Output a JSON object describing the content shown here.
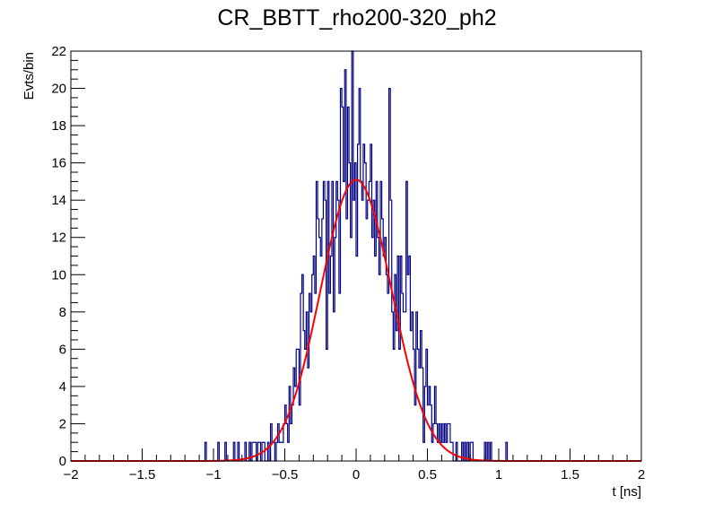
{
  "chart_data": {
    "type": "histogram",
    "title": "CR_BBTT_rho200-320_ph2",
    "xlabel": "t [ns]",
    "ylabel": "Evts/bin",
    "xlim": [
      -2,
      2
    ],
    "ylim": [
      0,
      22
    ],
    "x_ticks": [
      -2,
      -1.5,
      -1,
      -0.5,
      0,
      0.5,
      1,
      1.5,
      2
    ],
    "x_tick_labels": [
      "−2",
      "−1.5",
      "−1",
      "−0.5",
      "0",
      "0.5",
      "1",
      "1.5",
      "2"
    ],
    "y_ticks": [
      0,
      2,
      4,
      6,
      8,
      10,
      12,
      14,
      16,
      18,
      20,
      22
    ],
    "y_tick_labels": [
      "0",
      "2",
      "4",
      "6",
      "8",
      "10",
      "12",
      "14",
      "16",
      "18",
      "20",
      "22"
    ],
    "bin_width": 0.01,
    "histogram": {
      "color": "#000080",
      "bins": [
        [
          -1.06,
          1
        ],
        [
          -0.97,
          1
        ],
        [
          -0.92,
          1
        ],
        [
          -0.86,
          1
        ],
        [
          -0.83,
          1
        ],
        [
          -0.78,
          1
        ],
        [
          -0.75,
          1
        ],
        [
          -0.73,
          1
        ],
        [
          -0.72,
          1
        ],
        [
          -0.71,
          1
        ],
        [
          -0.69,
          1
        ],
        [
          -0.68,
          1
        ],
        [
          -0.66,
          1
        ],
        [
          -0.65,
          1
        ],
        [
          -0.62,
          1
        ],
        [
          -0.6,
          2
        ],
        [
          -0.59,
          1
        ],
        [
          -0.58,
          1
        ],
        [
          -0.56,
          1
        ],
        [
          -0.55,
          2
        ],
        [
          -0.54,
          1
        ],
        [
          -0.53,
          1
        ],
        [
          -0.52,
          1
        ],
        [
          -0.51,
          2
        ],
        [
          -0.5,
          3
        ],
        [
          -0.49,
          2
        ],
        [
          -0.48,
          1
        ],
        [
          -0.47,
          4
        ],
        [
          -0.46,
          2
        ],
        [
          -0.45,
          3
        ],
        [
          -0.44,
          5
        ],
        [
          -0.43,
          4
        ],
        [
          -0.42,
          6
        ],
        [
          -0.41,
          6
        ],
        [
          -0.4,
          3
        ],
        [
          -0.39,
          9
        ],
        [
          -0.38,
          10
        ],
        [
          -0.37,
          7
        ],
        [
          -0.36,
          6
        ],
        [
          -0.35,
          8
        ],
        [
          -0.34,
          5
        ],
        [
          -0.33,
          9
        ],
        [
          -0.32,
          8
        ],
        [
          -0.31,
          10
        ],
        [
          -0.3,
          11
        ],
        [
          -0.29,
          9
        ],
        [
          -0.28,
          15
        ],
        [
          -0.27,
          13
        ],
        [
          -0.26,
          12
        ],
        [
          -0.25,
          11
        ],
        [
          -0.24,
          13
        ],
        [
          -0.23,
          15
        ],
        [
          -0.22,
          14
        ],
        [
          -0.21,
          6
        ],
        [
          -0.2,
          15
        ],
        [
          -0.19,
          9
        ],
        [
          -0.18,
          11
        ],
        [
          -0.17,
          15
        ],
        [
          -0.16,
          8
        ],
        [
          -0.15,
          12
        ],
        [
          -0.14,
          15
        ],
        [
          -0.13,
          14
        ],
        [
          -0.12,
          9
        ],
        [
          -0.11,
          20
        ],
        [
          -0.1,
          19
        ],
        [
          -0.09,
          15
        ],
        [
          -0.08,
          21
        ],
        [
          -0.07,
          13
        ],
        [
          -0.06,
          19
        ],
        [
          -0.05,
          16
        ],
        [
          -0.04,
          12
        ],
        [
          -0.03,
          22
        ],
        [
          -0.02,
          14
        ],
        [
          -0.01,
          16
        ],
        [
          0.0,
          11
        ],
        [
          0.01,
          17
        ],
        [
          0.02,
          20
        ],
        [
          0.03,
          15
        ],
        [
          0.04,
          14
        ],
        [
          0.05,
          17
        ],
        [
          0.06,
          16
        ],
        [
          0.07,
          13
        ],
        [
          0.08,
          14
        ],
        [
          0.09,
          15
        ],
        [
          0.1,
          17
        ],
        [
          0.11,
          12
        ],
        [
          0.12,
          14
        ],
        [
          0.13,
          11
        ],
        [
          0.14,
          15
        ],
        [
          0.15,
          12
        ],
        [
          0.16,
          10
        ],
        [
          0.17,
          15
        ],
        [
          0.18,
          13
        ],
        [
          0.19,
          11
        ],
        [
          0.2,
          12
        ],
        [
          0.21,
          10
        ],
        [
          0.22,
          9
        ],
        [
          0.23,
          20
        ],
        [
          0.24,
          14
        ],
        [
          0.25,
          8
        ],
        [
          0.26,
          6
        ],
        [
          0.27,
          10
        ],
        [
          0.28,
          7
        ],
        [
          0.29,
          11
        ],
        [
          0.3,
          6
        ],
        [
          0.31,
          11
        ],
        [
          0.32,
          9
        ],
        [
          0.33,
          8
        ],
        [
          0.34,
          8
        ],
        [
          0.35,
          15
        ],
        [
          0.36,
          10
        ],
        [
          0.37,
          11
        ],
        [
          0.38,
          7
        ],
        [
          0.39,
          8
        ],
        [
          0.4,
          6
        ],
        [
          0.41,
          3
        ],
        [
          0.42,
          8
        ],
        [
          0.43,
          6
        ],
        [
          0.44,
          5
        ],
        [
          0.45,
          7
        ],
        [
          0.46,
          5
        ],
        [
          0.47,
          1
        ],
        [
          0.48,
          4
        ],
        [
          0.49,
          6
        ],
        [
          0.5,
          3
        ],
        [
          0.51,
          4
        ],
        [
          0.52,
          3
        ],
        [
          0.53,
          1
        ],
        [
          0.54,
          2
        ],
        [
          0.55,
          4
        ],
        [
          0.56,
          2
        ],
        [
          0.57,
          1
        ],
        [
          0.58,
          2
        ],
        [
          0.59,
          1
        ],
        [
          0.6,
          2
        ],
        [
          0.61,
          1
        ],
        [
          0.62,
          2
        ],
        [
          0.63,
          1
        ],
        [
          0.64,
          2
        ],
        [
          0.65,
          2
        ],
        [
          0.66,
          1
        ],
        [
          0.67,
          1
        ],
        [
          0.7,
          1
        ],
        [
          0.74,
          1
        ],
        [
          0.76,
          1
        ],
        [
          0.78,
          1
        ],
        [
          0.8,
          1
        ],
        [
          0.81,
          1
        ],
        [
          0.9,
          1
        ],
        [
          0.92,
          1
        ],
        [
          0.94,
          1
        ],
        [
          1.05,
          1
        ]
      ]
    },
    "fit": {
      "type": "gaussian",
      "color": "#ff0000",
      "amplitude": 15.1,
      "mean": 0.0,
      "sigma": 0.25
    },
    "grid": false,
    "legend": "none"
  }
}
